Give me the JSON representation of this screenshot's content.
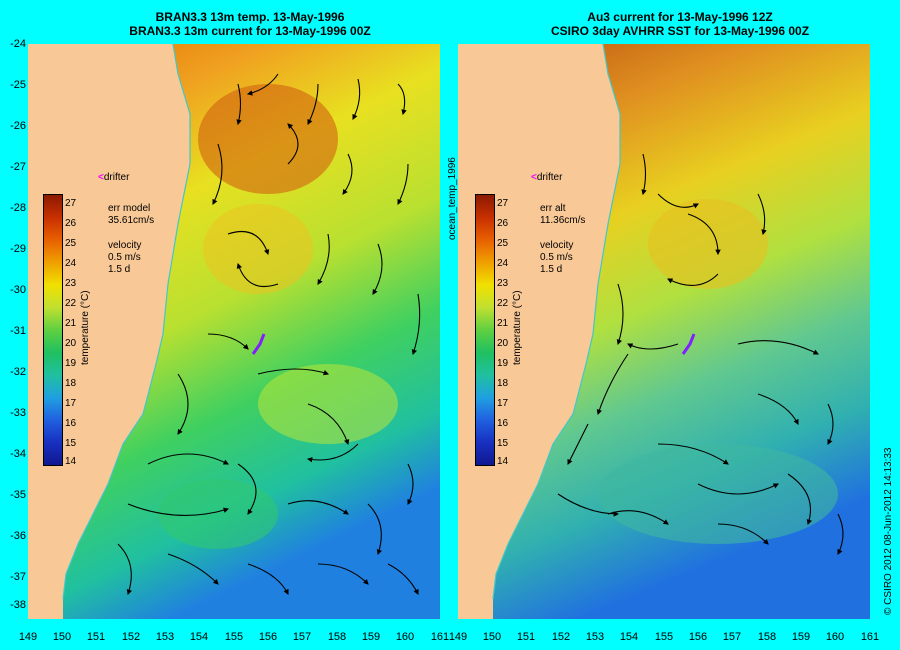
{
  "left_panel": {
    "title_line1": "BRAN3.3 13m temp. 13-May-1996",
    "title_line2": "BRAN3.3 13m current for 13-May-1996 00Z",
    "err_label": "err model",
    "err_value": "35.61cm/s",
    "velocity_label": "velocity",
    "velocity_scale": "0.5 m/s",
    "velocity_days": "1.5 d",
    "drifter_label": "drifter"
  },
  "right_panel": {
    "title_line1": "Au3 current for 13-May-1996 12Z",
    "title_line2": "CSIRO 3day AVHRR SST for 13-May-1996 00Z",
    "err_label": "err alt",
    "err_value": "11.36cm/s",
    "velocity_label": "velocity",
    "velocity_scale": "0.5 m/s",
    "velocity_days": "1.5 d",
    "drifter_label": "drifter"
  },
  "center_label": "ocean_temp_1996",
  "copyright": "© CSIRO 2012  08-Jun-2012 14:13:33",
  "colorbar": {
    "title": "temperature (°C)",
    "ticks": [
      "27",
      "26",
      "25",
      "24",
      "23",
      "22",
      "21",
      "20",
      "19",
      "18",
      "17",
      "16",
      "15",
      "14"
    ]
  },
  "axes": {
    "lat_labels": [
      "-24",
      "-25",
      "-26",
      "-27",
      "-28",
      "-29",
      "-30",
      "-31",
      "-32",
      "-33",
      "-34",
      "-35",
      "-36",
      "-37",
      "-38"
    ],
    "lon_labels_left": [
      "149",
      "150",
      "151",
      "152",
      "153",
      "154",
      "155",
      "156",
      "157",
      "158",
      "159",
      "160",
      "161"
    ],
    "lon_labels_right": [
      "149",
      "150",
      "151",
      "152",
      "153",
      "154",
      "155",
      "156",
      "157",
      "158",
      "159",
      "160",
      "161"
    ]
  },
  "colors": {
    "background": "#00ffff",
    "land": "#f8c896",
    "coastline": "#40c8c8",
    "drifter": "#ff00ff",
    "drifter_track": "#8020ff"
  },
  "legend": {
    "drifter_marker": "<"
  }
}
